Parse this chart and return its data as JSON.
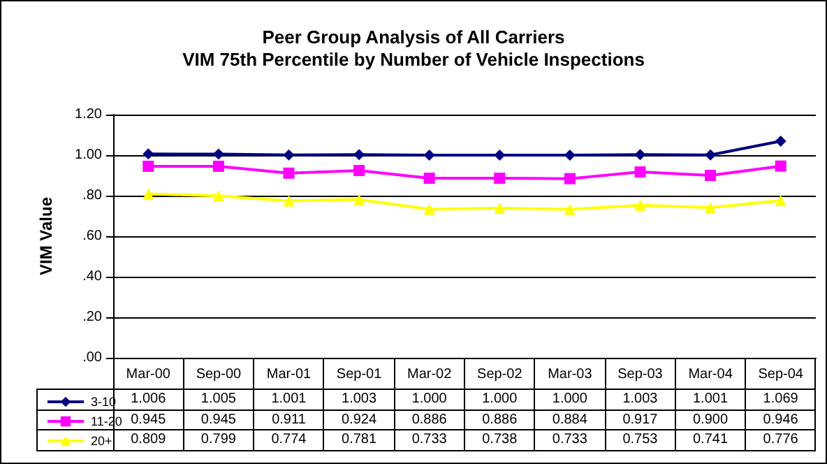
{
  "chart_data": {
    "type": "line",
    "title": "Peer Group Analysis of All Carriers",
    "subtitle": "VIM 75th Percentile by Number of Vehicle Inspections",
    "ylabel": "VIM Value",
    "categories": [
      "Mar-00",
      "Sep-00",
      "Mar-01",
      "Sep-01",
      "Mar-02",
      "Sep-02",
      "Mar-03",
      "Sep-03",
      "Mar-04",
      "Sep-04"
    ],
    "series": [
      {
        "name": "3-10",
        "color": "#000080",
        "marker": "diamond",
        "values": [
          1.006,
          1.005,
          1.001,
          1.003,
          1.0,
          1.0,
          1.0,
          1.003,
          1.001,
          1.069
        ],
        "value_labels": [
          "1.006",
          "1.005",
          "1.001",
          "1.003",
          "1.000",
          "1.000",
          "1.000",
          "1.003",
          "1.001",
          "1.069"
        ]
      },
      {
        "name": "11-20",
        "color": "#ff00ff",
        "marker": "square",
        "values": [
          0.945,
          0.945,
          0.911,
          0.924,
          0.886,
          0.886,
          0.884,
          0.917,
          0.9,
          0.946
        ],
        "value_labels": [
          "0.945",
          "0.945",
          "0.911",
          "0.924",
          "0.886",
          "0.886",
          "0.884",
          "0.917",
          "0.900",
          "0.946"
        ]
      },
      {
        "name": "20+",
        "color": "#ffff00",
        "marker": "triangle",
        "values": [
          0.809,
          0.799,
          0.774,
          0.781,
          0.733,
          0.738,
          0.733,
          0.753,
          0.741,
          0.776
        ],
        "value_labels": [
          "0.809",
          "0.799",
          "0.774",
          "0.781",
          "0.733",
          "0.738",
          "0.733",
          "0.753",
          "0.741",
          "0.776"
        ]
      }
    ],
    "ylim": [
      0,
      1.2
    ],
    "yticks": [
      {
        "value": 0,
        "label": ".00"
      },
      {
        "value": 0.2,
        "label": ".20"
      },
      {
        "value": 0.4,
        "label": ".40"
      },
      {
        "value": 0.6,
        "label": ".60"
      },
      {
        "value": 0.8,
        "label": ".80"
      },
      {
        "value": 1,
        "label": "1.00"
      },
      {
        "value": 1.2,
        "label": "1.20"
      }
    ],
    "grid": "y",
    "legend": "bottom",
    "line_style": "solid"
  }
}
